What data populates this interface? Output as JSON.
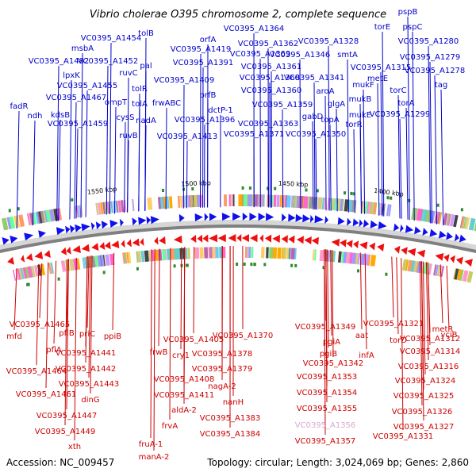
{
  "title": "Vibrio cholerae O395 chromosome 2, complete sequence",
  "accession": "Accession: NC_009457",
  "summary": "Topology: circular; Length: 3,024,069 bp; Genes: 2,860",
  "colors": {
    "plus_label": "#0000cc",
    "minus_label": "#cc0000",
    "plus_gene": "#1010ee",
    "minus_gene": "#ee1010",
    "dimmed_label": "#d8a8d0",
    "backbone": "#808080",
    "marker": "#2e8b2e"
  },
  "ruler_ticks": [
    "1550 kbp",
    "1500 kbp",
    "1450 kbp",
    "1400 kbp"
  ],
  "plus_strand_genes": [
    "fadR",
    "ndh",
    "VC0395_A1482",
    "lpxK",
    "kdsB",
    "VC0395_A1459",
    "VC0395_A1467",
    "msbA",
    "VC0395_A1454",
    "VC0395_A1452",
    "VC0395_A1455",
    "ompT",
    "ruvC",
    "cysS",
    "ruvB",
    "tolB",
    "pal",
    "tolR",
    "tolA",
    "nadA",
    "VC0395_A1419",
    "frwABC",
    "VC0395_A1413",
    "VC0395_A1409",
    "VC0395_A1391",
    "orfA",
    "orfB",
    "VC0395_A1396",
    "dctP-1",
    "VC0395_A1364",
    "VC0395_A1362",
    "VC0395_A1369",
    "VC0395_A1368",
    "VC0395_A1361",
    "VC0395_A1360",
    "VC0395_A1359",
    "VC0395_A1363",
    "VC0395_A1371",
    "VC0395_A1346",
    "VC0395_A1341",
    "VC0395_A1328",
    "smtA",
    "aroA",
    "gabD",
    "topA",
    "glgA",
    "VC0395_A1350",
    "mukF",
    "mukB",
    "mukE",
    "torR",
    "VC0395_A1315",
    "metE",
    "torE",
    "pspB",
    "pspC",
    "VC0395_A1280",
    "VC0395_A1279",
    "VC0395_A1278",
    "tag",
    "torC",
    "torA",
    "VC0395_A1299"
  ],
  "minus_strand_genes": [
    "mfd",
    "VC0395_A1465",
    "pflB",
    "pflA",
    "VC0395_A1464",
    "priC",
    "ppiB",
    "VC0395_A1441",
    "VC0395_A1442",
    "VC0395_A1443",
    "VC0395_A1461",
    "dinG",
    "VC0395_A1447",
    "VC0395_A1449",
    "xth",
    "frwB",
    "cry1",
    "VC0395_A1405",
    "VC0395_A1408",
    "VC0395_A1411",
    "aldA-2",
    "frvA",
    "fruA-1",
    "manA-2",
    "VC0395_A1370",
    "VC0395_A1378",
    "nagA-2",
    "VC0395_A1379",
    "nanH",
    "VC0395_A1383",
    "VC0395_A1384",
    "VC0395_A1349",
    "pgiA",
    "pgiB",
    "aat",
    "infA",
    "VC0395_A1342",
    "VC0395_A1353",
    "VC0395_A1354",
    "VC0395_A1355",
    "VC0395_A1356",
    "VC0395_A1357",
    "VC0395_A1321",
    "yciB",
    "metR",
    "torD",
    "VC0395_A1312",
    "VC0395_A1314",
    "VC0395_A1316",
    "VC0395_A1324",
    "VC0395_A1325",
    "VC0395_A1326",
    "VC0395_A1327",
    "VC0395_A1331"
  ]
}
